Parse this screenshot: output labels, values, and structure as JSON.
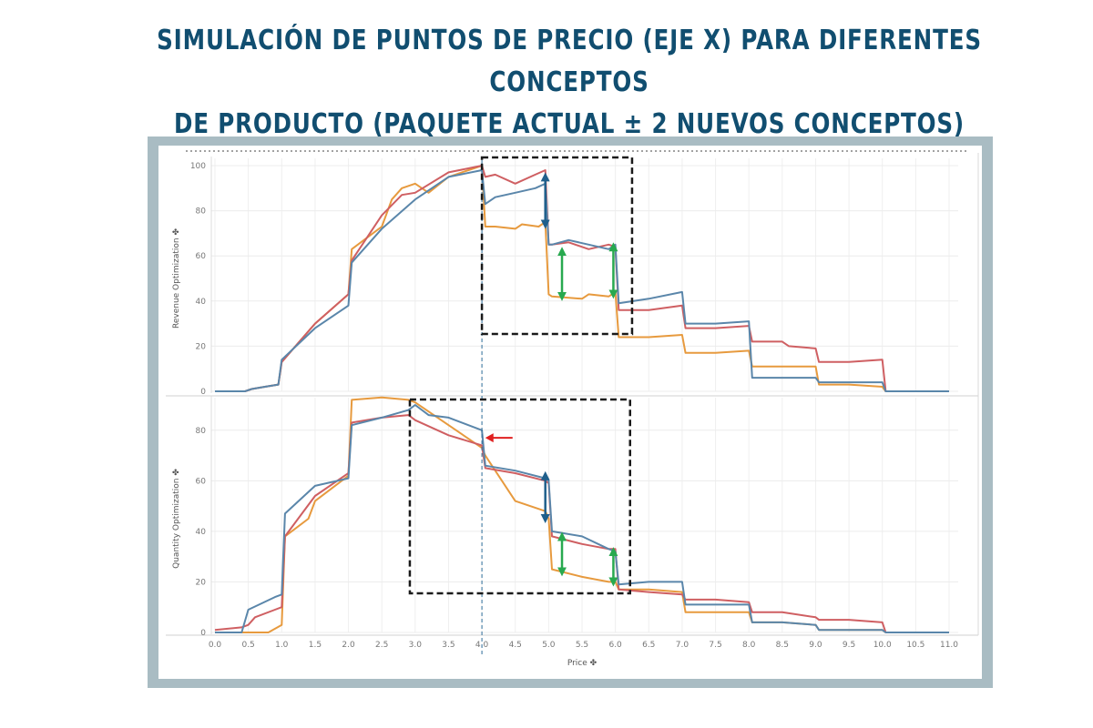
{
  "title_line1": "SIMULACIÓN DE PUNTOS DE PRECIO (EJE X) PARA DIFERENTES CONCEPTOS",
  "title_line2": "DE PRODUCTO (PAQUETE ACTUAL ± 2 NUEVOS CONCEPTOS)",
  "chart_data": [
    {
      "type": "line",
      "ylabel": "Revenue Optimization ✤",
      "xlabel": "Price ✤",
      "xlim": [
        0,
        11
      ],
      "ylim": [
        0,
        100
      ],
      "y_ticks": [
        0,
        20,
        40,
        60,
        80,
        100
      ],
      "x_ticks": [
        "0.0",
        "0.5",
        "1.0",
        "1.5",
        "2.0",
        "2.5",
        "3.0",
        "3.5",
        "4.0",
        "4.5",
        "5.0",
        "5.5",
        "6.0",
        "6.5",
        "7.0",
        "7.5",
        "8.0",
        "8.5",
        "9.0",
        "9.5",
        "10.0",
        "10.5",
        "11.0"
      ],
      "reference_line_x": 4.0,
      "series": [
        {
          "color": "#e79a3e",
          "x": [
            0,
            0.45,
            0.55,
            0.75,
            0.95,
            1.0,
            1.5,
            2.0,
            2.05,
            2.5,
            2.65,
            2.8,
            3.0,
            3.2,
            3.5,
            3.7,
            3.8,
            4.0,
            4.05,
            4.2,
            4.5,
            4.6,
            4.85,
            4.95,
            5.0,
            5.05,
            5.5,
            5.6,
            5.9,
            6.0,
            6.05,
            6.5,
            7.0,
            7.05,
            7.5,
            8.0,
            8.05,
            8.5,
            9.0,
            9.05,
            9.5,
            10.0,
            10.05,
            11.0
          ],
          "y": [
            0,
            0,
            1,
            2,
            3,
            13,
            30,
            43,
            63,
            73,
            85,
            90,
            92,
            88,
            95,
            97,
            98,
            100,
            73,
            73,
            72,
            74,
            73,
            75,
            43,
            42,
            41,
            43,
            42,
            44,
            24,
            24,
            25,
            17,
            17,
            18,
            11,
            11,
            11,
            3,
            3,
            2,
            0,
            0
          ]
        },
        {
          "color": "#cf5f62",
          "x": [
            0,
            0.45,
            0.55,
            0.75,
            0.95,
            1.0,
            1.5,
            2.0,
            2.05,
            2.5,
            2.8,
            3.0,
            3.5,
            4.0,
            4.05,
            4.2,
            4.5,
            4.8,
            4.95,
            5.0,
            5.05,
            5.3,
            5.6,
            5.9,
            6.0,
            6.05,
            6.5,
            7.0,
            7.05,
            7.5,
            8.0,
            8.05,
            8.5,
            8.6,
            9.0,
            9.05,
            9.5,
            10.0,
            10.05,
            11.0
          ],
          "y": [
            0,
            0,
            1,
            2,
            3,
            13,
            30,
            43,
            58,
            78,
            87,
            88,
            97,
            100,
            95,
            96,
            92,
            96,
            98,
            65,
            65,
            66,
            63,
            65,
            64,
            36,
            36,
            38,
            28,
            28,
            29,
            22,
            22,
            20,
            19,
            13,
            13,
            14,
            0,
            0
          ]
        },
        {
          "color": "#5a86aa",
          "x": [
            0,
            0.45,
            0.55,
            0.75,
            0.95,
            1.0,
            1.5,
            2.0,
            2.05,
            2.5,
            3.0,
            3.5,
            4.0,
            4.05,
            4.2,
            4.5,
            4.8,
            4.95,
            5.0,
            5.05,
            5.3,
            5.6,
            5.9,
            6.0,
            6.05,
            6.5,
            7.0,
            7.05,
            7.5,
            8.0,
            8.05,
            8.5,
            9.0,
            9.05,
            9.5,
            10.0,
            10.05,
            11.0
          ],
          "y": [
            0,
            0,
            1,
            2,
            3,
            14,
            28,
            38,
            57,
            72,
            85,
            95,
            98,
            83,
            86,
            88,
            90,
            92,
            65,
            65,
            67,
            65,
            63,
            65,
            39,
            41,
            44,
            30,
            30,
            31,
            6,
            6,
            6,
            4,
            4,
            4,
            0,
            0
          ]
        }
      ]
    },
    {
      "type": "line",
      "ylabel": "Quantity Optimization ✤",
      "xlabel": "Price ✤",
      "xlim": [
        0,
        11
      ],
      "ylim": [
        0,
        90
      ],
      "y_ticks": [
        0,
        20,
        40,
        60,
        80
      ],
      "x_ticks": [
        "0.0",
        "0.5",
        "1.0",
        "1.5",
        "2.0",
        "2.5",
        "3.0",
        "3.5",
        "4.0",
        "4.5",
        "5.0",
        "5.5",
        "6.0",
        "6.5",
        "7.0",
        "7.5",
        "8.0",
        "8.5",
        "9.0",
        "9.5",
        "10.0",
        "10.5",
        "11.0"
      ],
      "reference_line_x": 4.0,
      "series": [
        {
          "color": "#e79a3e",
          "x": [
            0,
            0.4,
            0.5,
            0.8,
            1.0,
            1.05,
            1.4,
            1.5,
            1.9,
            2.0,
            2.05,
            2.5,
            2.9,
            3.0,
            3.5,
            4.0,
            4.05,
            4.5,
            4.95,
            5.0,
            5.05,
            5.5,
            5.9,
            6.0,
            6.05,
            6.5,
            7.0,
            7.05,
            7.5,
            8.0,
            8.05,
            8.5,
            9.0,
            9.05,
            9.5,
            10.0,
            10.05,
            11.0
          ],
          "y": [
            0,
            0,
            0,
            0,
            3,
            38,
            45,
            52,
            60,
            62,
            92,
            93,
            92,
            91,
            82,
            73,
            70,
            52,
            48,
            45,
            25,
            22,
            20,
            20,
            17,
            17,
            16,
            8,
            8,
            8,
            4,
            4,
            3,
            1,
            1,
            1,
            0,
            0
          ]
        },
        {
          "color": "#cf5f62",
          "x": [
            0,
            0.4,
            0.5,
            0.6,
            0.9,
            1.0,
            1.05,
            1.5,
            2.0,
            2.05,
            2.5,
            2.9,
            3.0,
            3.5,
            4.0,
            4.05,
            4.5,
            4.95,
            5.0,
            5.05,
            5.5,
            5.9,
            6.0,
            6.05,
            6.5,
            7.0,
            7.05,
            7.5,
            8.0,
            8.05,
            8.5,
            9.0,
            9.05,
            9.5,
            10.0,
            10.05,
            11.0
          ],
          "y": [
            1,
            2,
            3,
            6,
            9,
            10,
            38,
            54,
            63,
            83,
            85,
            86,
            84,
            78,
            74,
            65,
            63,
            60,
            59,
            38,
            35,
            33,
            33,
            17,
            16,
            15,
            13,
            13,
            12,
            8,
            8,
            6,
            5,
            5,
            4,
            0,
            0
          ]
        },
        {
          "color": "#5a86aa",
          "x": [
            0,
            0.4,
            0.5,
            0.9,
            1.0,
            1.05,
            1.5,
            2.0,
            2.05,
            2.5,
            2.9,
            3.0,
            3.2,
            3.5,
            4.0,
            4.05,
            4.5,
            4.95,
            5.0,
            5.05,
            5.5,
            5.9,
            6.0,
            6.05,
            6.5,
            7.0,
            7.05,
            7.5,
            8.0,
            8.05,
            8.5,
            9.0,
            9.05,
            9.5,
            10.0,
            10.05,
            11.0
          ],
          "y": [
            0,
            0,
            9,
            14,
            15,
            47,
            58,
            61,
            82,
            85,
            88,
            90,
            86,
            85,
            80,
            66,
            64,
            61,
            60,
            40,
            38,
            33,
            32,
            19,
            20,
            20,
            11,
            11,
            11,
            4,
            4,
            3,
            1,
            1,
            1,
            0,
            0
          ]
        }
      ]
    }
  ],
  "annotations": {
    "dashed_box_color": "#1a1a1a",
    "blue_arrow_color": "#1f5f8b",
    "green_arrow_color": "#28a94f",
    "red_arrow_color": "#e02020"
  }
}
